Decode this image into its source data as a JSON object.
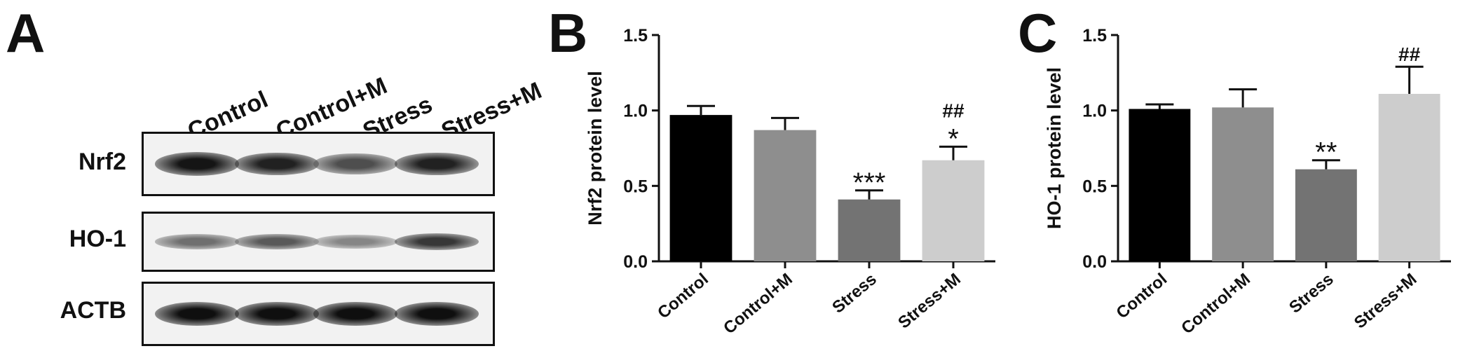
{
  "panels": {
    "a": "A",
    "b": "B",
    "c": "C"
  },
  "blot": {
    "lanes": [
      "Control",
      "Control+M",
      "Stress",
      "Stress+M"
    ],
    "rows": [
      "Nrf2",
      "HO-1",
      "ACTB"
    ],
    "band_intensity": {
      "Nrf2": [
        0.95,
        0.9,
        0.7,
        0.9
      ],
      "HO-1": [
        0.55,
        0.65,
        0.45,
        0.8
      ],
      "ACTB": [
        0.98,
        0.98,
        0.98,
        0.98
      ]
    }
  },
  "chart_data": [
    {
      "type": "bar",
      "categories": [
        "Control",
        "Control+M",
        "Stress",
        "Stress+M"
      ],
      "values": [
        0.97,
        0.87,
        0.41,
        0.67
      ],
      "errors": [
        0.06,
        0.08,
        0.06,
        0.09
      ],
      "annotations": [
        "",
        "",
        "***",
        "##\n*"
      ],
      "ylabel": "Nrf2 protein level",
      "ylim": [
        0,
        1.5
      ],
      "yticks": [
        "0.0",
        "0.5",
        "1.0",
        "1.5"
      ],
      "bar_colors": [
        "#000000",
        "#8e8e8e",
        "#737373",
        "#cdcdcd"
      ],
      "grid": false
    },
    {
      "type": "bar",
      "categories": [
        "Control",
        "Control+M",
        "Stress",
        "Stress+M"
      ],
      "values": [
        1.01,
        1.02,
        0.61,
        1.11
      ],
      "errors": [
        0.03,
        0.12,
        0.06,
        0.18
      ],
      "annotations": [
        "",
        "",
        "**",
        "##"
      ],
      "ylabel": "HO-1 protein level",
      "ylim": [
        0,
        1.5
      ],
      "yticks": [
        "0.0",
        "0.5",
        "1.0",
        "1.5"
      ],
      "bar_colors": [
        "#000000",
        "#8e8e8e",
        "#737373",
        "#cdcdcd"
      ],
      "grid": false
    }
  ]
}
